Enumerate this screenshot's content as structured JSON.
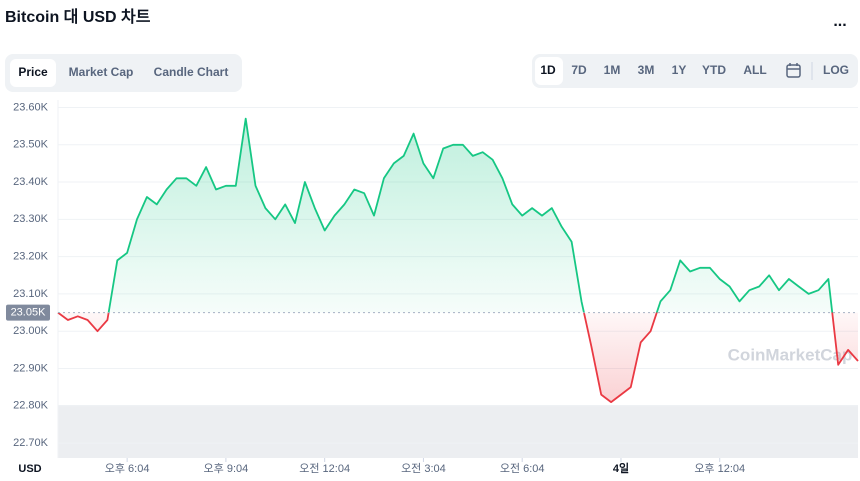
{
  "chart_data": {
    "type": "line",
    "title": "Bitcoin 대 USD 차트",
    "values": [
      23050,
      23030,
      23040,
      23030,
      23000,
      23030,
      23190,
      23210,
      23300,
      23360,
      23340,
      23380,
      23410,
      23410,
      23390,
      23440,
      23380,
      23390,
      23390,
      23570,
      23390,
      23330,
      23300,
      23340,
      23290,
      23400,
      23330,
      23270,
      23310,
      23340,
      23380,
      23370,
      23310,
      23410,
      23450,
      23470,
      23530,
      23450,
      23410,
      23490,
      23500,
      23500,
      23470,
      23480,
      23460,
      23410,
      23340,
      23310,
      23330,
      23310,
      23330,
      23280,
      23240,
      23080,
      22960,
      22830,
      22810,
      22830,
      22850,
      22970,
      23000,
      23080,
      23110,
      23190,
      23160,
      23170,
      23170,
      23140,
      23120,
      23080,
      23110,
      23120,
      23150,
      23110,
      23140,
      23120,
      23100,
      23110,
      23140,
      22910,
      22950,
      22920
    ],
    "xlim": [
      0,
      81
    ],
    "xticks": [
      {
        "value": 7,
        "label": "오후 6:04"
      },
      {
        "value": 17,
        "label": "오후 9:04"
      },
      {
        "value": 27,
        "label": "오전 12:04"
      },
      {
        "value": 37,
        "label": "오전 3:04"
      },
      {
        "value": 47,
        "label": "오전 6:04"
      },
      {
        "value": 57,
        "label": "4일"
      },
      {
        "value": 67,
        "label": "오후 12:04"
      }
    ],
    "ylim": [
      22660,
      23620
    ],
    "yticks": [
      {
        "value": 22700,
        "label": "22.70K"
      },
      {
        "value": 22800,
        "label": "22.80K"
      },
      {
        "value": 22900,
        "label": "22.90K"
      },
      {
        "value": 23000,
        "label": "23.00K"
      },
      {
        "value": 23100,
        "label": "23.10K"
      },
      {
        "value": 23200,
        "label": "23.20K"
      },
      {
        "value": 23300,
        "label": "23.30K"
      },
      {
        "value": 23400,
        "label": "23.40K"
      },
      {
        "value": 23500,
        "label": "23.50K"
      },
      {
        "value": 23600,
        "label": "23.60K"
      }
    ],
    "baseline": {
      "value": 23050,
      "label": "23.05K"
    },
    "up_color": "#16c784",
    "down_color": "#ea3943",
    "grid": true,
    "x_unit": "USD",
    "watermark": "CoinMarketCap"
  },
  "controls": {
    "more": "...",
    "tabs": [
      "Price",
      "Market Cap",
      "Candle Chart"
    ],
    "ranges": [
      "1D",
      "7D",
      "1M",
      "3M",
      "1Y",
      "YTD",
      "ALL"
    ],
    "log": "LOG"
  }
}
